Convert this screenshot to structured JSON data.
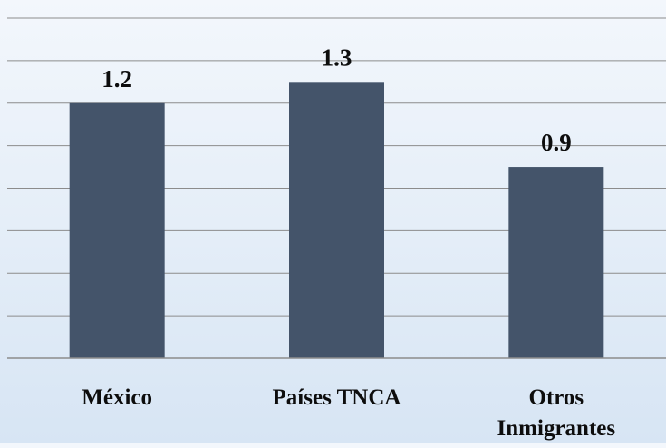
{
  "chart_data": {
    "type": "bar",
    "categories": [
      "México",
      "Países TNCA",
      "Otros Inmigrantes"
    ],
    "category_lines": [
      [
        "México"
      ],
      [
        "Países TNCA"
      ],
      [
        "Otros",
        "Inmigrantes"
      ]
    ],
    "values": [
      1.2,
      1.3,
      0.9
    ],
    "value_labels": [
      "1.2",
      "1.3",
      "0.9"
    ],
    "title": "",
    "xlabel": "",
    "ylabel": "",
    "ylim": [
      0,
      1.6
    ],
    "grid": true,
    "legend": "none",
    "colors": {
      "bar": "#44546a",
      "grid": "#8c8c8c",
      "text": "#0d0d0d"
    }
  }
}
